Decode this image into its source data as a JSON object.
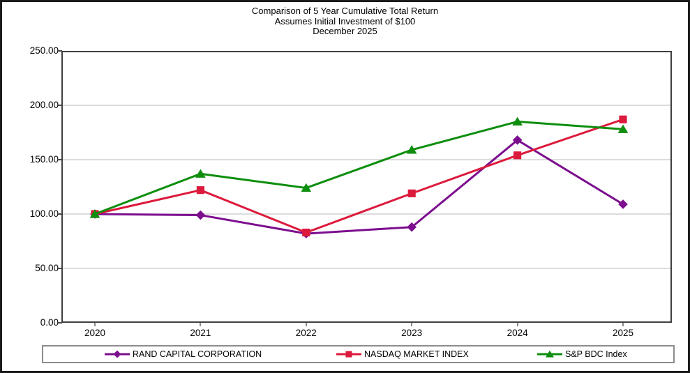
{
  "title": {
    "line1": "Comparison of 5 Year Cumulative Total Return",
    "line2": "Assumes Initial Investment of $100",
    "line3": "December 2025"
  },
  "chart_data": {
    "type": "line",
    "categories": [
      "2020",
      "2021",
      "2022",
      "2023",
      "2024",
      "2025"
    ],
    "series": [
      {
        "name": "RAND CAPITAL CORPORATION",
        "marker": "diamond",
        "color": "#7C0E8E",
        "values": [
          100,
          99,
          82,
          88,
          168,
          109
        ]
      },
      {
        "name": "NASDAQ MARKET INDEX",
        "marker": "square",
        "color": "#DC1A3C",
        "values": [
          100,
          122,
          83,
          119,
          154,
          187
        ]
      },
      {
        "name": "S&P BDC Index",
        "marker": "triangle",
        "color": "#0E8E0E",
        "values": [
          100,
          137,
          124,
          159,
          185,
          178
        ]
      }
    ],
    "ylim": [
      0,
      250
    ],
    "ytick_step": 50,
    "yticks": [
      "250.00",
      "200.00",
      "150.00",
      "100.00",
      "50.00",
      "0.00"
    ],
    "xlabel": "",
    "ylabel": "",
    "grid": true,
    "legend_position": "bottom"
  },
  "colors": {
    "background": "#ffffff",
    "figure_border": "#1b1b1b",
    "plot_border": "#3f3f3f",
    "gridline": "#c6c6c6",
    "legend_border": "#8c8c8c",
    "text": "#000000"
  }
}
